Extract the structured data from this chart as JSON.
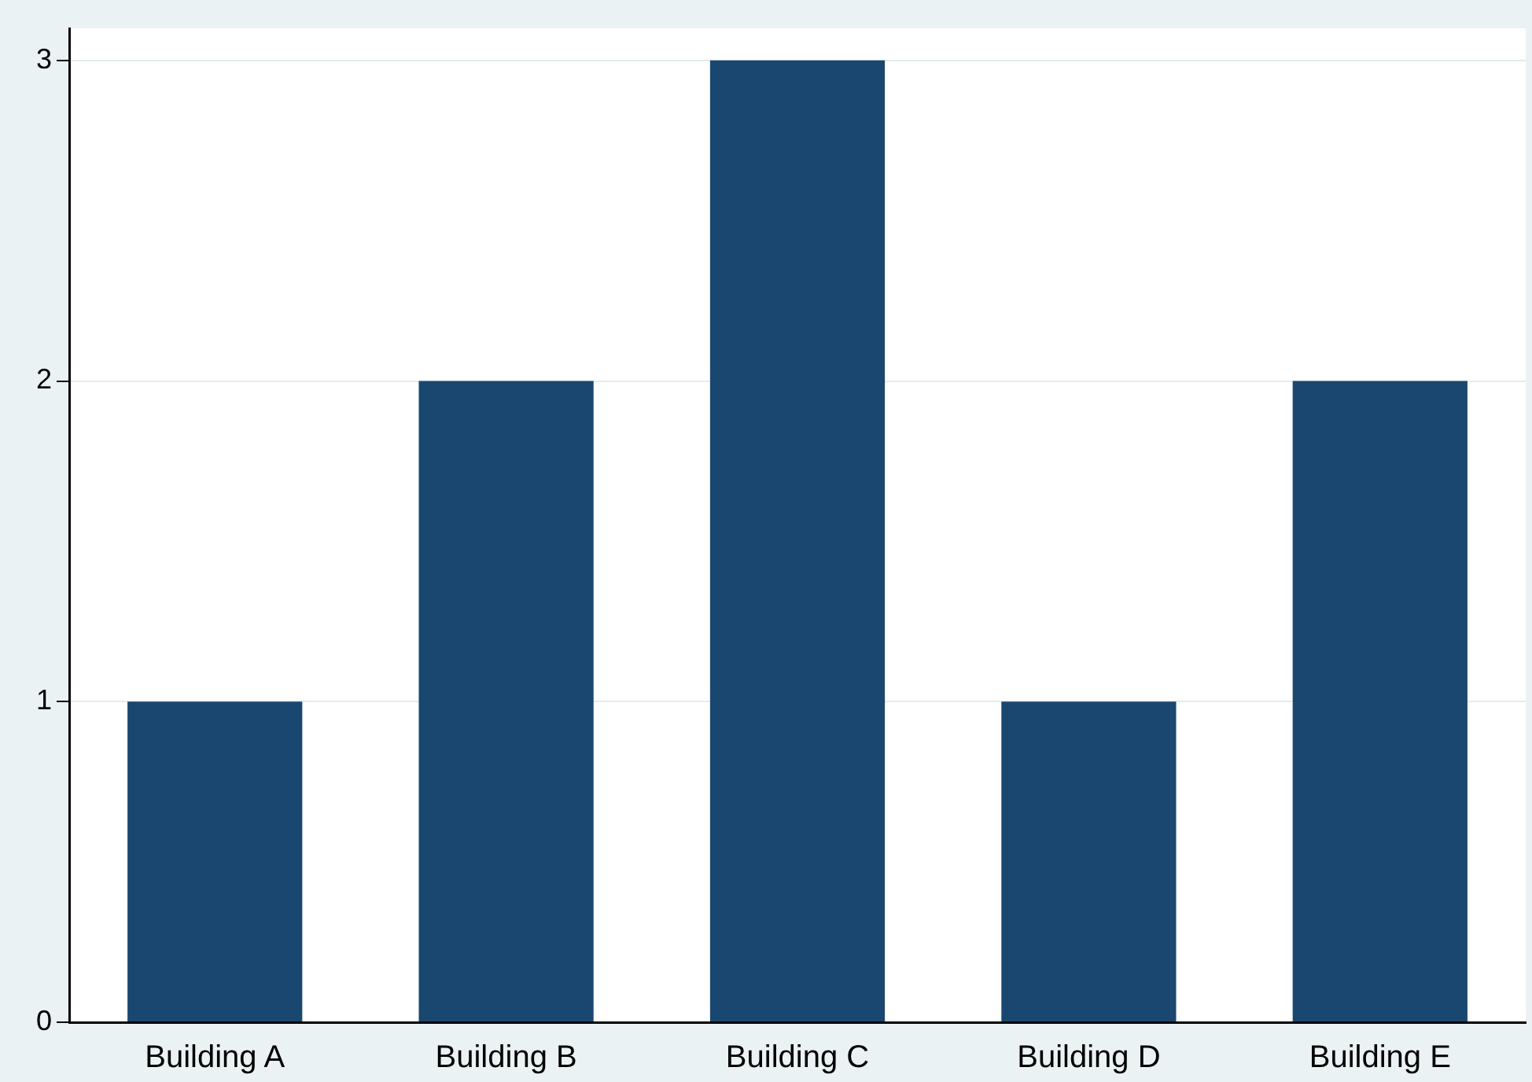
{
  "chart_data": {
    "type": "bar",
    "categories": [
      "Building A",
      "Building B",
      "Building C",
      "Building D",
      "Building E"
    ],
    "values": [
      1,
      2,
      3,
      1,
      2
    ],
    "color": "#1a476f",
    "ylim": [
      0,
      3.1
    ],
    "yticks": [
      0,
      1,
      2,
      3
    ],
    "grid": "y",
    "legend": false
  }
}
